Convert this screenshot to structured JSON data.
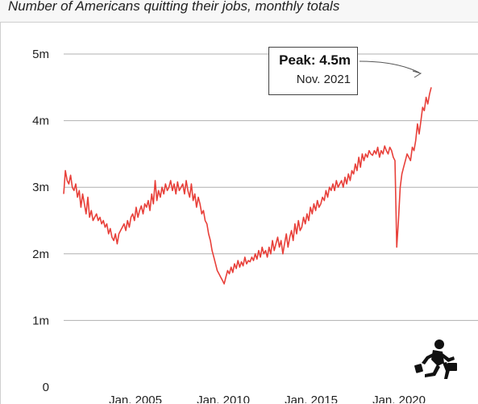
{
  "subtitle": "Number of Americans quitting their jobs, monthly totals",
  "colors": {
    "line": "#e8403a",
    "grid": "#b0b0b0",
    "text": "#222222"
  },
  "icon": "running-businessman-icon",
  "annotation": {
    "label": "Peak: 4.5m",
    "date": "Nov. 2021"
  },
  "chart_data": {
    "type": "line",
    "title": "",
    "xlabel": "",
    "ylabel": "",
    "ylim": [
      0,
      5
    ],
    "yticks": [
      0,
      1,
      2,
      3,
      4,
      5
    ],
    "ytick_labels": [
      "0",
      "1m",
      "2m",
      "3m",
      "4m",
      "5m"
    ],
    "xtick_labels": [
      "Jan. 2005",
      "Jan. 2010",
      "Jan. 2015",
      "Jan. 2020"
    ],
    "xtick_years": [
      2005,
      2010,
      2015,
      2020
    ],
    "x_range": [
      "Dec. 2000",
      "Nov. 2021"
    ],
    "grid": true,
    "series": [
      {
        "values": [
          2.9,
          3.25,
          3.1,
          3.05,
          3.18,
          3.0,
          2.95,
          3.05,
          2.85,
          2.95,
          2.7,
          2.9,
          2.75,
          2.6,
          2.85,
          2.55,
          2.65,
          2.5,
          2.55,
          2.6,
          2.5,
          2.55,
          2.45,
          2.5,
          2.4,
          2.45,
          2.3,
          2.38,
          2.25,
          2.2,
          2.3,
          2.15,
          2.3,
          2.35,
          2.4,
          2.45,
          2.35,
          2.5,
          2.4,
          2.55,
          2.6,
          2.5,
          2.7,
          2.55,
          2.65,
          2.72,
          2.6,
          2.75,
          2.7,
          2.8,
          2.65,
          2.9,
          2.75,
          3.1,
          2.8,
          2.95,
          2.85,
          3.0,
          2.9,
          3.05,
          2.95,
          3.0,
          3.1,
          2.95,
          3.05,
          2.9,
          3.08,
          2.95,
          3.0,
          3.05,
          2.9,
          3.1,
          2.95,
          2.85,
          3.05,
          2.8,
          2.9,
          2.7,
          2.85,
          2.75,
          2.6,
          2.65,
          2.5,
          2.45,
          2.3,
          2.2,
          2.05,
          1.95,
          1.85,
          1.75,
          1.7,
          1.65,
          1.6,
          1.55,
          1.65,
          1.75,
          1.7,
          1.8,
          1.72,
          1.85,
          1.78,
          1.9,
          1.8,
          1.88,
          1.82,
          1.95,
          1.85,
          1.9,
          1.88,
          1.95,
          1.9,
          2.0,
          1.92,
          2.05,
          1.95,
          2.1,
          2.0,
          2.05,
          1.95,
          2.1,
          2.0,
          2.2,
          2.05,
          2.15,
          2.25,
          2.1,
          2.2,
          2.0,
          2.15,
          2.3,
          2.1,
          2.25,
          2.35,
          2.2,
          2.45,
          2.3,
          2.5,
          2.35,
          2.4,
          2.55,
          2.45,
          2.6,
          2.5,
          2.7,
          2.6,
          2.75,
          2.65,
          2.8,
          2.7,
          2.75,
          2.85,
          2.8,
          2.95,
          2.85,
          3.0,
          2.95,
          3.05,
          2.95,
          3.1,
          3.0,
          3.05,
          3.1,
          3.0,
          3.15,
          3.05,
          3.2,
          3.1,
          3.25,
          3.2,
          3.35,
          3.25,
          3.45,
          3.3,
          3.5,
          3.4,
          3.5,
          3.45,
          3.55,
          3.5,
          3.48,
          3.55,
          3.5,
          3.6,
          3.45,
          3.55,
          3.5,
          3.62,
          3.55,
          3.5,
          3.6,
          3.55,
          3.45,
          3.4,
          2.1,
          2.5,
          3.0,
          3.2,
          3.3,
          3.4,
          3.5,
          3.45,
          3.4,
          3.6,
          3.55,
          3.7,
          3.95,
          3.8,
          4.0,
          4.2,
          4.15,
          4.35,
          4.25,
          4.4,
          4.5
        ]
      }
    ]
  }
}
